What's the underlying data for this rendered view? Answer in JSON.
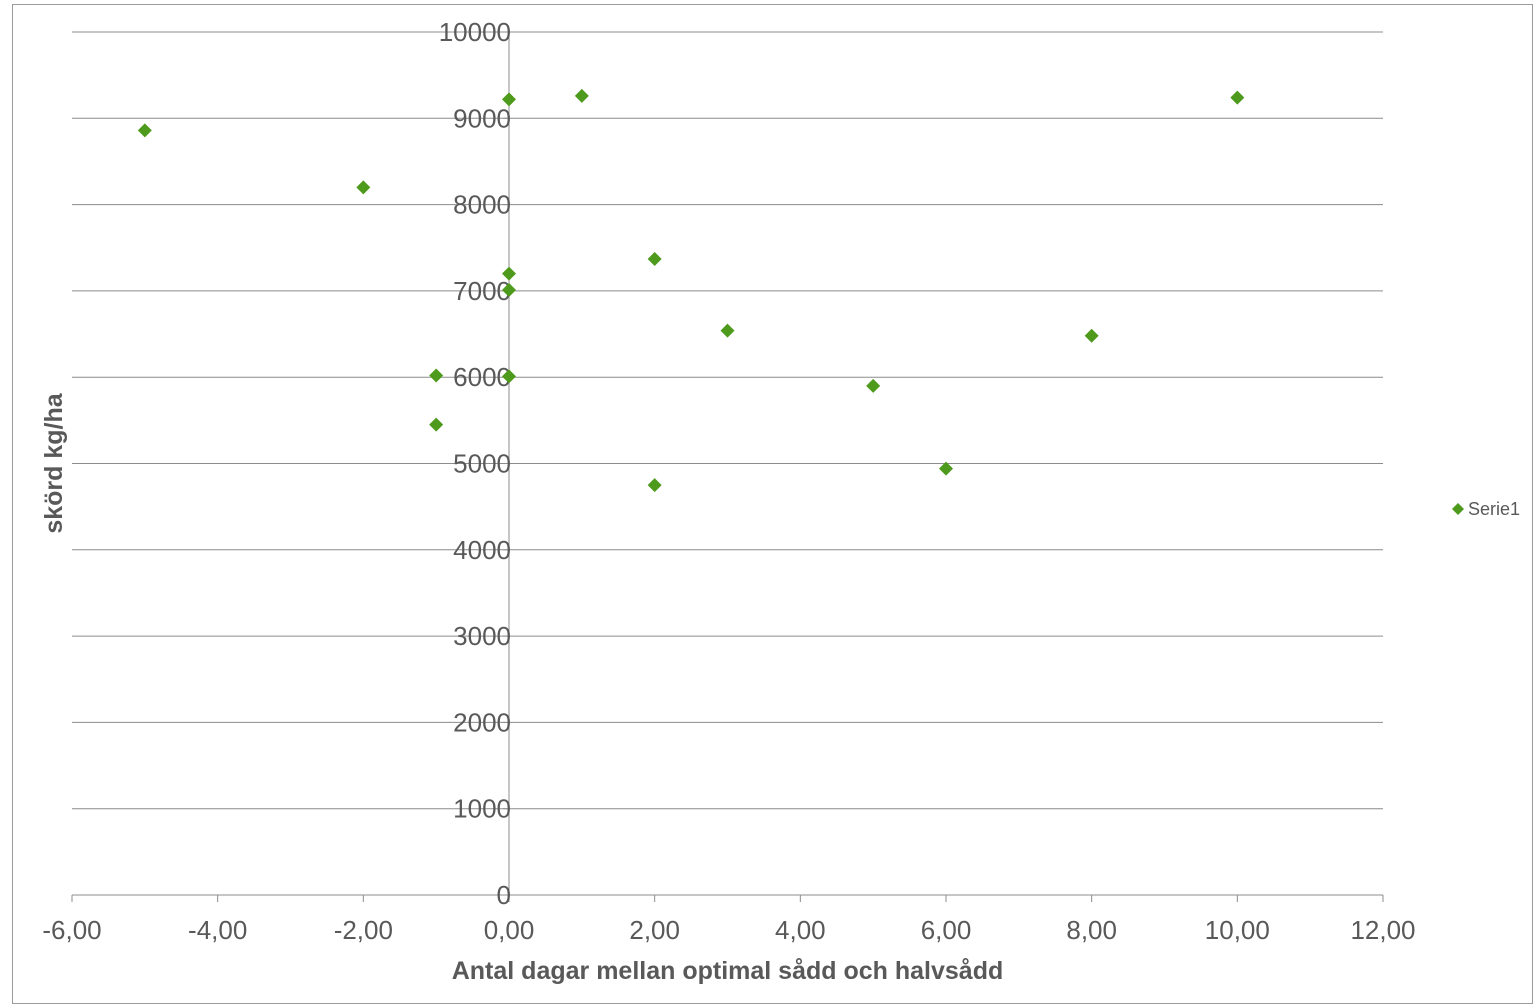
{
  "chart_data": {
    "type": "scatter",
    "xlabel": "Antal dagar mellan optimal sådd och halvsådd",
    "ylabel": "skörd kg/ha",
    "xlim": [
      -6,
      12
    ],
    "ylim": [
      0,
      10000
    ],
    "x_ticks": [
      "-6,00",
      "-4,00",
      "-2,00",
      "0,00",
      "2,00",
      "4,00",
      "6,00",
      "8,00",
      "10,00",
      "12,00"
    ],
    "y_ticks": [
      "0",
      "1000",
      "2000",
      "3000",
      "4000",
      "5000",
      "6000",
      "7000",
      "8000",
      "9000",
      "10000"
    ],
    "grid": "horizontal",
    "legend_position": "right",
    "marker_color": "#4e9a1c",
    "series": [
      {
        "name": "Serie1",
        "x": [
          -5,
          -2,
          -1,
          -1,
          0,
          0,
          0,
          0,
          1,
          2,
          2,
          3,
          5,
          6,
          8,
          10
        ],
        "y": [
          8860,
          8200,
          6020,
          5450,
          9220,
          7200,
          7010,
          6010,
          9260,
          7370,
          4750,
          6540,
          5900,
          4940,
          6480,
          9240
        ]
      }
    ]
  }
}
